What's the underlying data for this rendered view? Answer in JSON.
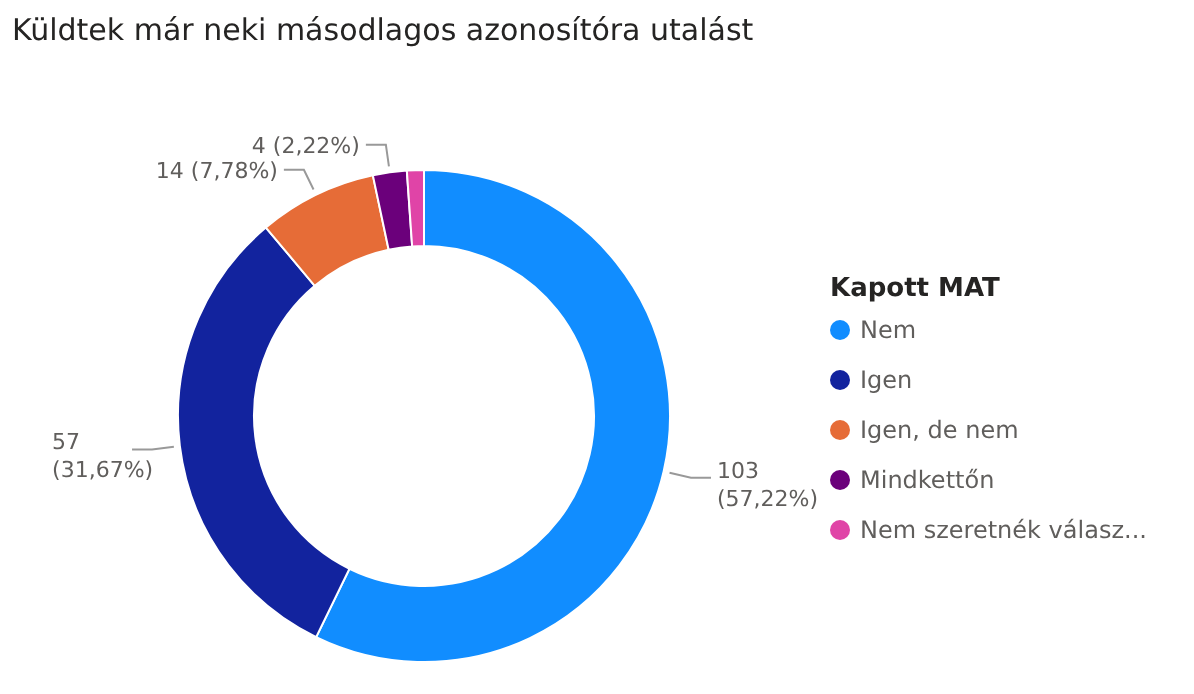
{
  "chart_data": {
    "type": "donut",
    "title": "Küldtek már neki másodlagos azonosítóra utalást",
    "legend_title": "Kapott MAT",
    "categories": [
      "Nem",
      "Igen",
      "Igen, de nem",
      "Mindkettőn",
      "Nem szeretnék válasz..."
    ],
    "values": [
      103,
      57,
      14,
      4,
      2
    ],
    "colors": [
      "#118dff",
      "#12239e",
      "#e66c37",
      "#6b007b",
      "#e044a7"
    ],
    "value_labels": [
      "103 (57,22%)",
      "57 (31,67%)",
      "14 (7,78%)",
      "4 (2,22%)",
      null
    ],
    "legend": "right"
  }
}
